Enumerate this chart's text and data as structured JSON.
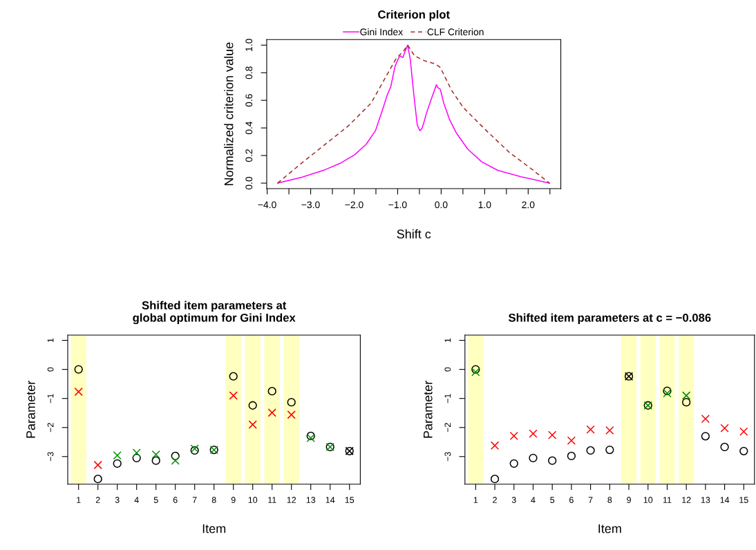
{
  "chart_data": [
    {
      "type": "line",
      "title": "Criterion plot",
      "xlabel": "Shift c",
      "ylabel": "Normalized criterion value",
      "legend": "top",
      "grid": false,
      "xlim": [
        -4.01,
        2.75
      ],
      "ylim": [
        -0.04,
        1.04
      ],
      "xticks": [
        {
          "value": -4.0,
          "label": "−4.0"
        },
        {
          "value": -3.5,
          "label": null
        },
        {
          "value": -3.0,
          "label": "−3.0"
        },
        {
          "value": -2.5,
          "label": null
        },
        {
          "value": -2.0,
          "label": "−2.0"
        },
        {
          "value": -1.5,
          "label": null
        },
        {
          "value": -1.0,
          "label": "−1.0"
        },
        {
          "value": -0.5,
          "label": null
        },
        {
          "value": 0.0,
          "label": "0.0"
        },
        {
          "value": 0.5,
          "label": null
        },
        {
          "value": 1.0,
          "label": "1.0"
        },
        {
          "value": 1.5,
          "label": null
        },
        {
          "value": 2.0,
          "label": "2.0"
        },
        {
          "value": 2.5,
          "label": null
        }
      ],
      "yticks": [
        {
          "value": 0.0,
          "label": "0.0"
        },
        {
          "value": 0.2,
          "label": "0.2"
        },
        {
          "value": 0.4,
          "label": "0.4"
        },
        {
          "value": 0.6,
          "label": "0.6"
        },
        {
          "value": 0.8,
          "label": "0.8"
        },
        {
          "value": 1.0,
          "label": "1.0"
        }
      ],
      "series": [
        {
          "name": "Gini Index",
          "color": "#ff00ff",
          "line_style": "solid",
          "x": [
            -3.76,
            -3.2,
            -2.67,
            -2.3,
            -1.99,
            -1.72,
            -1.51,
            -1.35,
            -1.24,
            -1.16,
            -1.06,
            -0.98,
            -0.94,
            -0.88,
            -0.83,
            -0.77,
            -0.71,
            -0.63,
            -0.55,
            -0.49,
            -0.44,
            -0.39,
            -0.34,
            -0.24,
            -0.11,
            -0.08,
            -0.02,
            0.06,
            0.19,
            0.35,
            0.61,
            0.93,
            1.3,
            1.83,
            2.49
          ],
          "values": [
            0,
            0.043,
            0.097,
            0.147,
            0.205,
            0.283,
            0.38,
            0.53,
            0.638,
            0.697,
            0.847,
            0.905,
            0.922,
            0.91,
            0.955,
            1.0,
            0.897,
            0.647,
            0.422,
            0.38,
            0.397,
            0.447,
            0.505,
            0.597,
            0.713,
            0.693,
            0.68,
            0.58,
            0.463,
            0.363,
            0.247,
            0.155,
            0.093,
            0.047,
            0
          ]
        },
        {
          "name": "CLF Criterion",
          "color": "#a52a2a",
          "line_style": "dashed",
          "x": [
            -3.76,
            -3.2,
            -2.67,
            -2.14,
            -1.61,
            -1.24,
            -1.03,
            -0.87,
            -0.77,
            -0.61,
            -0.39,
            -0.13,
            -0.02,
            0.24,
            0.51,
            1.04,
            1.57,
            2.1,
            2.49
          ],
          "values": [
            0,
            0.147,
            0.28,
            0.413,
            0.58,
            0.788,
            0.905,
            0.955,
            1.0,
            0.922,
            0.888,
            0.863,
            0.838,
            0.672,
            0.547,
            0.38,
            0.222,
            0.097,
            0
          ]
        }
      ]
    },
    {
      "type": "scatter",
      "title": "Shifted item parameters at\nglobal optimum for Gini Index",
      "xlabel": "Item",
      "ylabel": "Parameter",
      "grid": false,
      "x": [
        1,
        2,
        3,
        4,
        5,
        6,
        7,
        8,
        9,
        10,
        11,
        12,
        13,
        14,
        15
      ],
      "xlim": [
        0.44,
        15.56
      ],
      "xticks": [
        1,
        2,
        3,
        4,
        5,
        6,
        7,
        8,
        9,
        10,
        11,
        12,
        13,
        14,
        15
      ],
      "ylim": [
        -3.95,
        1.18
      ],
      "yticks": [
        {
          "value": -3,
          "label": "−3"
        },
        {
          "value": -2,
          "label": "−2"
        },
        {
          "value": -1,
          "label": "−1"
        },
        {
          "value": 0,
          "label": "0"
        },
        {
          "value": 1,
          "label": "1"
        }
      ],
      "bands": [
        {
          "axis": "x",
          "from": 0.6,
          "to": 1.4,
          "color": "#ffffc0"
        },
        {
          "axis": "x",
          "from": 8.6,
          "to": 9.4,
          "color": "#ffffc0"
        },
        {
          "axis": "x",
          "from": 9.6,
          "to": 10.4,
          "color": "#ffffc0"
        },
        {
          "axis": "x",
          "from": 10.6,
          "to": 11.4,
          "color": "#ffffc0"
        },
        {
          "axis": "x",
          "from": 11.6,
          "to": 12.4,
          "color": "#ffffc0"
        }
      ],
      "series": [
        {
          "marker": "circle",
          "color": "#000000",
          "values": [
            0.0,
            -3.77,
            -3.24,
            -3.05,
            -3.14,
            -2.98,
            -2.79,
            -2.77,
            -0.24,
            -1.24,
            -0.75,
            -1.13,
            -2.29,
            -2.67,
            -2.81
          ]
        },
        {
          "marker": "cross",
          "colors": [
            "#ff0000",
            "#ff0000",
            "#008b00",
            "#008b00",
            "#008b00",
            "#008b00",
            "#008b00",
            "#008b00",
            "#ff0000",
            "#ff0000",
            "#ff0000",
            "#ff0000",
            "#008b00",
            "#008b00",
            "#000000"
          ],
          "values": [
            -0.77,
            -3.29,
            -2.96,
            -2.87,
            -2.93,
            -3.14,
            -2.73,
            -2.77,
            -0.9,
            -1.9,
            -1.49,
            -1.56,
            -2.36,
            -2.67,
            -2.81
          ]
        }
      ]
    },
    {
      "type": "scatter",
      "title": "Shifted item parameters at c = −0.086",
      "xlabel": "Item",
      "ylabel": "Parameter",
      "grid": false,
      "x": [
        1,
        2,
        3,
        4,
        5,
        6,
        7,
        8,
        9,
        10,
        11,
        12,
        13,
        14,
        15
      ],
      "xlim": [
        0.44,
        15.56
      ],
      "xticks": [
        1,
        2,
        3,
        4,
        5,
        6,
        7,
        8,
        9,
        10,
        11,
        12,
        13,
        14,
        15
      ],
      "ylim": [
        -3.95,
        1.18
      ],
      "yticks": [
        {
          "value": -3,
          "label": "−3"
        },
        {
          "value": -2,
          "label": "−2"
        },
        {
          "value": -1,
          "label": "−1"
        },
        {
          "value": 0,
          "label": "0"
        },
        {
          "value": 1,
          "label": "1"
        }
      ],
      "bands": [
        {
          "axis": "x",
          "from": 0.6,
          "to": 1.4,
          "color": "#ffffc0"
        },
        {
          "axis": "x",
          "from": 8.6,
          "to": 9.4,
          "color": "#ffffc0"
        },
        {
          "axis": "x",
          "from": 9.6,
          "to": 10.4,
          "color": "#ffffc0"
        },
        {
          "axis": "x",
          "from": 10.6,
          "to": 11.4,
          "color": "#ffffc0"
        },
        {
          "axis": "x",
          "from": 11.6,
          "to": 12.4,
          "color": "#ffffc0"
        }
      ],
      "series": [
        {
          "marker": "circle",
          "color": "#000000",
          "values": [
            0.0,
            -3.77,
            -3.24,
            -3.05,
            -3.14,
            -2.98,
            -2.79,
            -2.77,
            -0.24,
            -1.24,
            -0.74,
            -1.13,
            -2.3,
            -2.67,
            -2.81
          ]
        },
        {
          "marker": "cross",
          "colors": [
            "#008b00",
            "#ff0000",
            "#ff0000",
            "#ff0000",
            "#ff0000",
            "#ff0000",
            "#ff0000",
            "#ff0000",
            "#000000",
            "#008b00",
            "#008b00",
            "#008b00",
            "#ff0000",
            "#ff0000",
            "#ff0000"
          ],
          "values": [
            -0.09,
            -2.62,
            -2.29,
            -2.21,
            -2.26,
            -2.45,
            -2.07,
            -2.1,
            -0.24,
            -1.24,
            -0.82,
            -0.9,
            -1.7,
            -2.02,
            -2.14
          ]
        }
      ]
    }
  ]
}
